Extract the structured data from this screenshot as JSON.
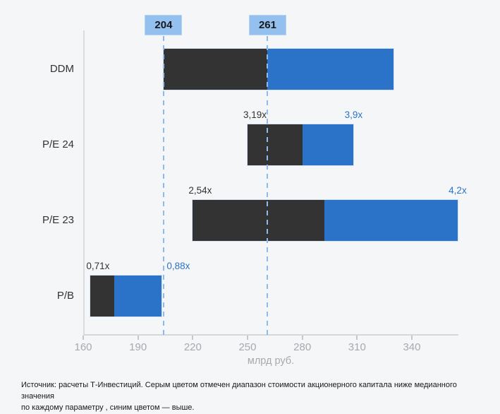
{
  "footer": {
    "line1": "Источник: расчеты Т-Инвестиций. Серым цветом отмечен диапазон стоимости акционерного капитала ниже медианного значения",
    "line2": "по каждому параметру , синим цветом — выше."
  },
  "chart_data": {
    "type": "bar",
    "orientation": "horizontal",
    "title": "",
    "xlabel": "млрд руб.",
    "x_domain": [
      160,
      365.5
    ],
    "x_ticks": [
      160,
      190,
      220,
      250,
      280,
      310,
      340
    ],
    "grid": false,
    "reference_lines": [
      {
        "value": 204,
        "label": "204"
      },
      {
        "value": 261,
        "label": "261"
      }
    ],
    "rows": [
      {
        "category": "DDM",
        "low": 204,
        "median": 261,
        "high": 330,
        "low_label": "",
        "high_label": ""
      },
      {
        "category": "P/E 24",
        "low": 250,
        "median": 280,
        "high": 308,
        "low_label": "3,19x",
        "high_label": "3,9x"
      },
      {
        "category": "P/E 23",
        "low": 220,
        "median": 292,
        "high": 365,
        "low_label": "2,54x",
        "high_label": "4,2x"
      },
      {
        "category": "P/B",
        "low": 164,
        "median": 177,
        "high": 203,
        "low_label": "0,71x",
        "high_label": "0,88x",
        "high_label_after_end": true
      }
    ],
    "colors": {
      "below_median": "#333333",
      "above_median": "#2B72C9",
      "reference_line": "#8FBBEC",
      "reference_box_bg": "#93C0EF",
      "low_label_text": "#333333",
      "high_label_text": "#2B72C9",
      "background": "#F5F6F8",
      "axis": "#D9DADE",
      "tick_text": "#A7A9AE"
    }
  }
}
